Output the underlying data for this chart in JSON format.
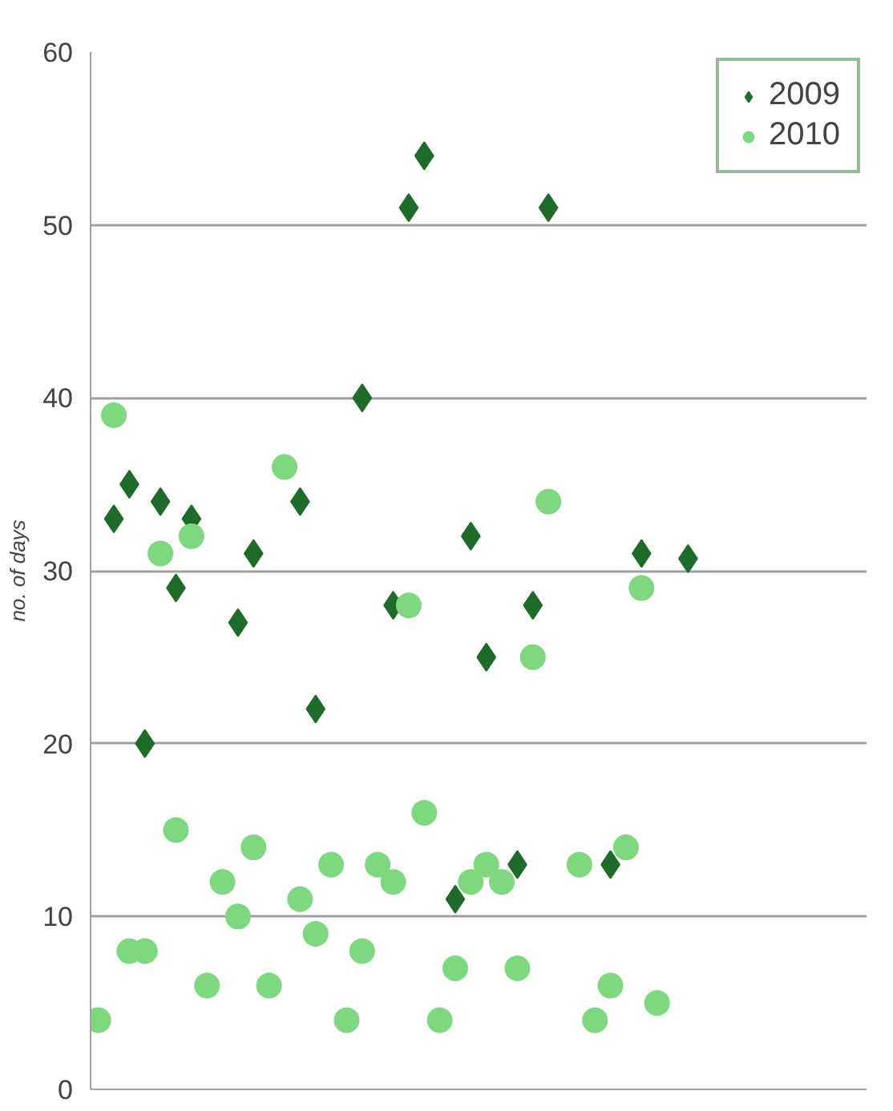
{
  "chart_data": {
    "type": "scatter",
    "ylabel": "no. of days",
    "categories": [
      null,
      null,
      null,
      null,
      null,
      null,
      null,
      null,
      null,
      null,
      null,
      null,
      null,
      null,
      null,
      null,
      null,
      null,
      null,
      null,
      null,
      null,
      null,
      null,
      null,
      null,
      null,
      null,
      null,
      null,
      null,
      null,
      null,
      null,
      null,
      null,
      null,
      null,
      null,
      null,
      null,
      null,
      null,
      null,
      null,
      null,
      null,
      null,
      null,
      null
    ],
    "series": [
      {
        "name": "2009",
        "color": "#1e6b2a",
        "marker": "diamond",
        "values": [
          null,
          33,
          35,
          20,
          34,
          29,
          33,
          null,
          null,
          27,
          31,
          null,
          null,
          34,
          22,
          null,
          null,
          40,
          null,
          28,
          51,
          54,
          null,
          11,
          32,
          25,
          null,
          13,
          28,
          51,
          null,
          null,
          null,
          13,
          null,
          31,
          null,
          null,
          30.7,
          null,
          null,
          null,
          null,
          null,
          null,
          null,
          null,
          null,
          null,
          null
        ]
      },
      {
        "name": "2010",
        "color": "#7dd87f",
        "marker": "circle",
        "values": [
          4,
          39,
          8,
          8,
          31,
          15,
          32,
          6,
          12,
          10,
          14,
          6,
          36,
          11,
          9,
          13,
          4,
          8,
          13,
          12,
          28,
          16,
          4,
          7,
          12,
          13,
          12,
          7,
          25,
          34,
          null,
          13,
          4,
          6,
          14,
          29,
          5,
          null,
          null,
          null,
          null,
          null,
          null,
          null,
          null,
          null,
          null,
          null,
          null,
          null
        ]
      }
    ],
    "ylim": [
      0,
      60
    ],
    "yticks": [
      0,
      10,
      20,
      30,
      40,
      50,
      60
    ],
    "grid": "y",
    "legend": "top right",
    "tick_labels": "y"
  }
}
